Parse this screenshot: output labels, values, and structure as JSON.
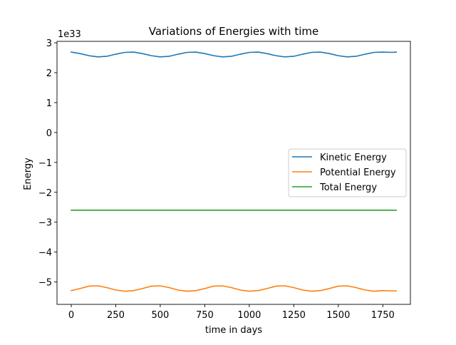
{
  "chart_data": {
    "type": "line",
    "title": "Variations of Energies with time",
    "xlabel": "time in days",
    "ylabel": "Energy",
    "offset_text": "1e33",
    "xlim": [
      -80,
      1905
    ],
    "ylim": [
      -5.75,
      3.05
    ],
    "xticks": [
      0,
      250,
      500,
      750,
      1000,
      1250,
      1500,
      1750
    ],
    "xtick_labels": [
      "0",
      "250",
      "500",
      "750",
      "1000",
      "1250",
      "1500",
      "1750"
    ],
    "yticks": [
      3,
      2,
      1,
      0,
      -1,
      -2,
      -3,
      -4,
      -5
    ],
    "ytick_labels": [
      "3",
      "2",
      "1",
      "0",
      "−1",
      "−2",
      "−3",
      "−4",
      "−5"
    ],
    "grid": false,
    "legend_position": "center-right",
    "series": [
      {
        "name": "Kinetic Energy",
        "color": "#1f77b4",
        "x": [
          0,
          50,
          100,
          150,
          200,
          250,
          300,
          350,
          400,
          450,
          500,
          550,
          600,
          650,
          700,
          750,
          800,
          850,
          900,
          950,
          1000,
          1050,
          1100,
          1150,
          1200,
          1250,
          1300,
          1350,
          1400,
          1450,
          1500,
          1550,
          1600,
          1650,
          1700,
          1750,
          1800,
          1826
        ],
        "y": [
          2.69,
          2.64,
          2.57,
          2.53,
          2.55,
          2.62,
          2.68,
          2.69,
          2.64,
          2.57,
          2.53,
          2.55,
          2.62,
          2.68,
          2.69,
          2.64,
          2.57,
          2.53,
          2.55,
          2.62,
          2.68,
          2.69,
          2.64,
          2.57,
          2.53,
          2.55,
          2.62,
          2.68,
          2.69,
          2.64,
          2.57,
          2.53,
          2.55,
          2.62,
          2.68,
          2.69,
          2.68,
          2.69
        ]
      },
      {
        "name": "Potential Energy",
        "color": "#ff7f0e",
        "x": [
          0,
          50,
          100,
          150,
          200,
          250,
          300,
          350,
          400,
          450,
          500,
          550,
          600,
          650,
          700,
          750,
          800,
          850,
          900,
          950,
          1000,
          1050,
          1100,
          1150,
          1200,
          1250,
          1300,
          1350,
          1400,
          1450,
          1500,
          1550,
          1600,
          1650,
          1700,
          1750,
          1800,
          1826
        ],
        "y": [
          -5.29,
          -5.22,
          -5.14,
          -5.13,
          -5.19,
          -5.27,
          -5.31,
          -5.29,
          -5.22,
          -5.14,
          -5.13,
          -5.19,
          -5.27,
          -5.31,
          -5.29,
          -5.22,
          -5.14,
          -5.13,
          -5.19,
          -5.27,
          -5.31,
          -5.29,
          -5.22,
          -5.14,
          -5.13,
          -5.19,
          -5.27,
          -5.31,
          -5.29,
          -5.22,
          -5.14,
          -5.13,
          -5.19,
          -5.27,
          -5.31,
          -5.29,
          -5.3,
          -5.3
        ]
      },
      {
        "name": "Total Energy",
        "color": "#2ca02c",
        "x": [
          0,
          1826
        ],
        "y": [
          -2.6,
          -2.6
        ]
      }
    ]
  }
}
